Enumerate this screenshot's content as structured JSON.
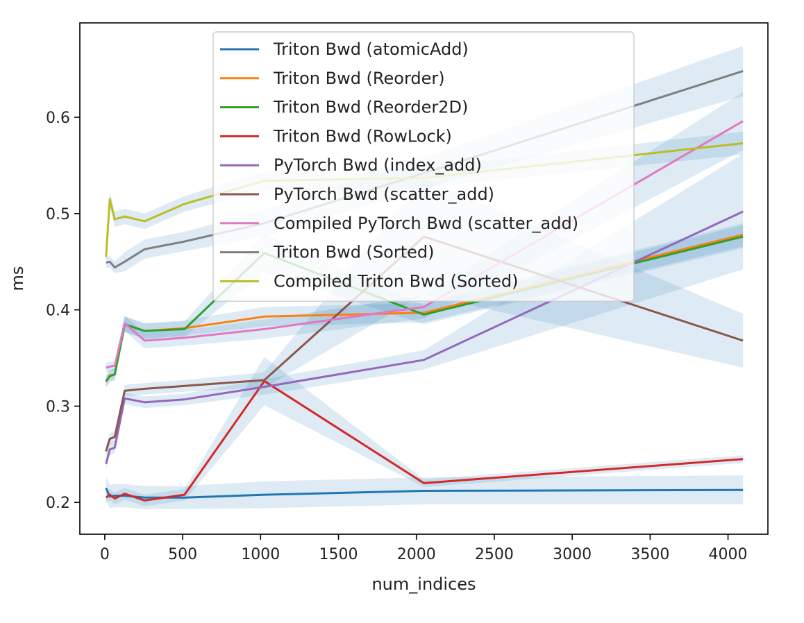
{
  "chart_data": {
    "type": "line",
    "title": "",
    "xlabel": "num_indices",
    "ylabel": "ms",
    "xlim": [
      -160,
      4256
    ],
    "ylim": [
      0.167,
      0.698
    ],
    "xticks": [
      0,
      500,
      1000,
      1500,
      2000,
      2500,
      3000,
      3500,
      4000
    ],
    "yticks": [
      0.2,
      0.3,
      0.4,
      0.5,
      0.6
    ],
    "ytick_labels": [
      "0.2",
      "0.3",
      "0.4",
      "0.5",
      "0.6"
    ],
    "x": [
      8,
      32,
      64,
      128,
      256,
      512,
      1024,
      2048,
      4096
    ],
    "legend_position": "upper-center",
    "grid": false,
    "series": [
      {
        "name": "Triton Bwd (atomicAdd)",
        "color": "#1f77b4",
        "values": [
          0.215,
          0.206,
          0.207,
          0.207,
          0.205,
          0.205,
          0.208,
          0.212,
          0.213
        ],
        "band": [
          0.012,
          0.012,
          0.012,
          0.012,
          0.012,
          0.012,
          0.014,
          0.014,
          0.015
        ]
      },
      {
        "name": "Triton Bwd (Reorder)",
        "color": "#ff7f0e",
        "values": [
          0.325,
          0.332,
          0.333,
          0.385,
          0.378,
          0.381,
          0.393,
          0.397,
          0.478
        ],
        "band": [
          0.006,
          0.006,
          0.006,
          0.008,
          0.008,
          0.008,
          0.01,
          0.01,
          0.012
        ]
      },
      {
        "name": "Triton Bwd (Reorder2D)",
        "color": "#2ca02c",
        "values": [
          0.326,
          0.331,
          0.333,
          0.385,
          0.378,
          0.38,
          0.459,
          0.395,
          0.476
        ],
        "band": [
          0.006,
          0.006,
          0.006,
          0.008,
          0.008,
          0.008,
          0.02,
          0.01,
          0.012
        ]
      },
      {
        "name": "Triton Bwd (RowLock)",
        "color": "#d62728",
        "values": [
          0.205,
          0.208,
          0.204,
          0.209,
          0.202,
          0.208,
          0.326,
          0.22,
          0.245
        ],
        "band": [
          0.006,
          0.006,
          0.006,
          0.006,
          0.006,
          0.006,
          0.025,
          0.004,
          0.004
        ]
      },
      {
        "name": "PyTorch Bwd (index_add)",
        "color": "#9467bd",
        "values": [
          0.24,
          0.255,
          0.257,
          0.308,
          0.304,
          0.307,
          0.32,
          0.348,
          0.502
        ],
        "band": [
          0.006,
          0.006,
          0.006,
          0.006,
          0.006,
          0.006,
          0.008,
          0.01,
          0.06
        ]
      },
      {
        "name": "PyTorch Bwd (scatter_add)",
        "color": "#8c564b",
        "values": [
          0.253,
          0.266,
          0.268,
          0.316,
          0.318,
          0.321,
          0.327,
          0.476,
          0.368
        ],
        "band": [
          0.006,
          0.006,
          0.006,
          0.006,
          0.006,
          0.006,
          0.008,
          0.06,
          0.028
        ]
      },
      {
        "name": "Compiled PyTorch Bwd (scatter_add)",
        "color": "#e377c2",
        "values": [
          0.34,
          0.341,
          0.342,
          0.386,
          0.368,
          0.371,
          0.38,
          0.403,
          0.596
        ],
        "band": [
          0.005,
          0.005,
          0.005,
          0.008,
          0.008,
          0.008,
          0.01,
          0.012,
          0.03
        ]
      },
      {
        "name": "Triton Bwd (Sorted)",
        "color": "#7f7f7f",
        "values": [
          0.449,
          0.45,
          0.444,
          0.45,
          0.463,
          0.471,
          0.49,
          0.542,
          0.648
        ],
        "band": [
          0.006,
          0.006,
          0.006,
          0.01,
          0.01,
          0.01,
          0.014,
          0.016,
          0.026
        ]
      },
      {
        "name": "Compiled Triton Bwd (Sorted)",
        "color": "#bcbd22",
        "values": [
          0.455,
          0.515,
          0.494,
          0.497,
          0.492,
          0.51,
          0.534,
          0.537,
          0.573
        ],
        "band": [
          0.006,
          0.008,
          0.008,
          0.008,
          0.008,
          0.008,
          0.01,
          0.01,
          0.012
        ]
      }
    ]
  }
}
